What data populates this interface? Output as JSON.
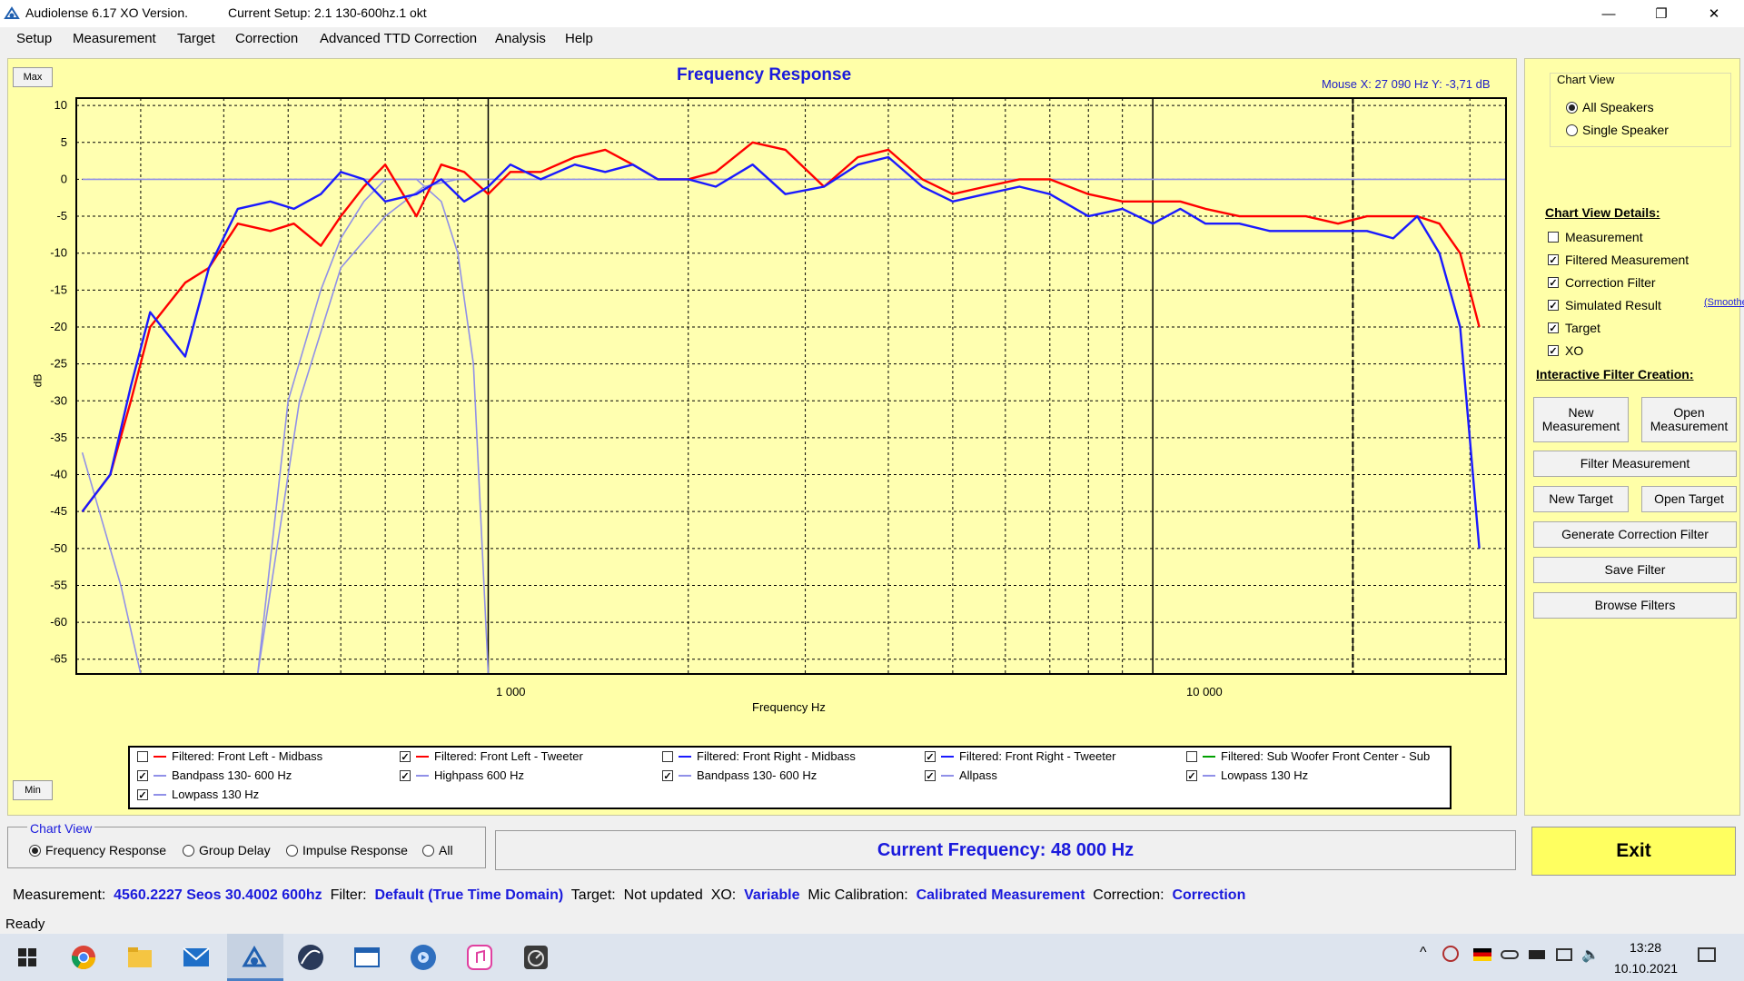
{
  "window": {
    "app_title": "Audiolense 6.17 XO Version.",
    "setup_title": "Current Setup: 2.1 130-600hz.1 okt",
    "minimize_glyph": "—",
    "restore_glyph": "❐",
    "close_glyph": "✕"
  },
  "menu": [
    "Setup",
    "Measurement",
    "Target",
    "Correction",
    "Advanced TTD Correction",
    "Analysis",
    "Help"
  ],
  "chart": {
    "title": "Frequency Response",
    "mouse_readout": "Mouse X: 27 090 Hz   Y: -3,71 dB",
    "max_label": "Max",
    "min_label": "Min",
    "ylabel": "dB",
    "xlabel": "Frequency Hz",
    "x_tick_labels": [
      "1 000",
      "10 000"
    ]
  },
  "chart_data": {
    "type": "line",
    "title": "Frequency Response",
    "xlabel": "Frequency Hz",
    "ylabel": "dB",
    "x_scale": "log",
    "xlim": [
      240,
      34000
    ],
    "ylim": [
      -67,
      11
    ],
    "y_ticks": [
      10,
      5,
      0,
      -5,
      -10,
      -15,
      -20,
      -25,
      -30,
      -35,
      -40,
      -45,
      -50,
      -55,
      -60,
      -65
    ],
    "x_tick_labels": [
      "1 000",
      "10 000"
    ],
    "grid": true,
    "series": [
      {
        "name": "Filtered: Front Left - Tweeter",
        "color": "#ff0000",
        "x": [
          245,
          270,
          290,
          310,
          350,
          380,
          420,
          470,
          510,
          560,
          600,
          650,
          700,
          780,
          850,
          920,
          1000,
          1080,
          1200,
          1350,
          1500,
          1650,
          1800,
          2000,
          2200,
          2500,
          2800,
          3200,
          3600,
          4000,
          4500,
          5000,
          5600,
          6300,
          7000,
          8000,
          9000,
          10000,
          11000,
          12000,
          13500,
          15000,
          17000,
          19000,
          21000,
          23000,
          25000,
          27000,
          29000,
          31000
        ],
        "y": [
          -45,
          -40,
          -30,
          -20,
          -14,
          -12,
          -6,
          -7,
          -6,
          -9,
          -5,
          -1,
          2,
          -5,
          2,
          1,
          -2,
          1,
          1,
          3,
          4,
          2,
          0,
          0,
          1,
          5,
          4,
          -1,
          3,
          4,
          0,
          -2,
          -1,
          0,
          0,
          -2,
          -3,
          -3,
          -3,
          -4,
          -5,
          -5,
          -5,
          -6,
          -5,
          -5,
          -5,
          -6,
          -10,
          -20
        ]
      },
      {
        "name": "Filtered: Front Right - Tweeter",
        "color": "#1a1aff",
        "x": [
          245,
          270,
          290,
          310,
          350,
          380,
          420,
          470,
          510,
          560,
          600,
          650,
          700,
          780,
          850,
          920,
          1000,
          1080,
          1200,
          1350,
          1500,
          1650,
          1800,
          2000,
          2200,
          2500,
          2800,
          3200,
          3600,
          4000,
          4500,
          5000,
          5600,
          6300,
          7000,
          8000,
          9000,
          10000,
          11000,
          12000,
          13500,
          15000,
          17000,
          19000,
          21000,
          23000,
          25000,
          27000,
          29000,
          31000
        ],
        "y": [
          -45,
          -40,
          -28,
          -18,
          -24,
          -12,
          -4,
          -3,
          -4,
          -2,
          1,
          0,
          -3,
          -2,
          0,
          -3,
          -1,
          2,
          0,
          2,
          1,
          2,
          0,
          0,
          -1,
          2,
          -2,
          -1,
          2,
          3,
          -1,
          -3,
          -2,
          -1,
          -2,
          -5,
          -4,
          -6,
          -4,
          -6,
          -6,
          -7,
          -7,
          -7,
          -7,
          -8,
          -5,
          -10,
          -20,
          -50
        ]
      },
      {
        "name": "Bandpass  130- 600 Hz",
        "color": "#9090e8",
        "x": [
          450,
          500,
          560,
          600,
          650,
          700,
          780,
          850,
          900,
          950,
          1000
        ],
        "y": [
          -67,
          -30,
          -15,
          -8,
          -3,
          0,
          0,
          -3,
          -10,
          -25,
          -67
        ]
      },
      {
        "name": "Highpass  600 Hz",
        "color": "#9090e8",
        "x": [
          450,
          520,
          600,
          700,
          800,
          900,
          1000
        ],
        "y": [
          -67,
          -30,
          -12,
          -5,
          -1,
          0,
          0
        ]
      },
      {
        "name": "Allpass",
        "color": "#9090e8",
        "x": [
          245,
          34000
        ],
        "y": [
          0,
          0
        ]
      },
      {
        "name": "Lowpass  130 Hz",
        "color": "#9090e8",
        "x": [
          245,
          260,
          280,
          300
        ],
        "y": [
          -37,
          -45,
          -55,
          -67
        ]
      }
    ]
  },
  "legend": [
    [
      {
        "label": "Filtered: Front Left - Midbass",
        "checked": false,
        "color": "#ff0000"
      },
      {
        "label": "Filtered: Front Left - Tweeter",
        "checked": true,
        "color": "#ff0000"
      },
      {
        "label": "Filtered: Front Right - Midbass",
        "checked": false,
        "color": "#1a1aff"
      },
      {
        "label": "Filtered: Front Right - Tweeter",
        "checked": true,
        "color": "#1a1aff"
      },
      {
        "label": "Filtered: Sub Woofer Front Center - Sub",
        "checked": false,
        "color": "#00a000"
      }
    ],
    [
      {
        "label": "Bandpass  130- 600 Hz",
        "checked": true,
        "color": "#9090e8"
      },
      {
        "label": "Highpass  600 Hz",
        "checked": true,
        "color": "#9090e8"
      },
      {
        "label": "Bandpass  130- 600 Hz",
        "checked": true,
        "color": "#9090e8"
      },
      {
        "label": "Allpass",
        "checked": true,
        "color": "#9090e8"
      },
      {
        "label": "Lowpass  130 Hz",
        "checked": true,
        "color": "#9090e8"
      }
    ],
    [
      {
        "label": "Lowpass  130 Hz",
        "checked": true,
        "color": "#9090e8"
      }
    ]
  ],
  "right_panel": {
    "chart_view_group": "Chart View",
    "all_speakers": "All Speakers",
    "single_speaker": "Single Speaker",
    "details_header": "Chart View Details:",
    "details": [
      {
        "label": "Measurement",
        "checked": false
      },
      {
        "label": "Filtered Measurement",
        "checked": true
      },
      {
        "label": "Correction Filter",
        "checked": true
      },
      {
        "label": "Simulated Result",
        "checked": true
      },
      {
        "label": "Target",
        "checked": true
      },
      {
        "label": "XO",
        "checked": true
      }
    ],
    "smoothed_link": "(Smoothed)",
    "interactive_header": "Interactive Filter Creation:",
    "new_measurement_l1": "New",
    "new_measurement_l2": "Measurement",
    "open_measurement_l1": "Open",
    "open_measurement_l2": "Measurement",
    "filter_measurement": "Filter Measurement",
    "new_target": "New Target",
    "open_target": "Open Target",
    "generate_correction": "Generate Correction Filter",
    "save_filter": "Save Filter",
    "browse_filters": "Browse Filters"
  },
  "bottom": {
    "chart_view_label": "Chart View",
    "options": [
      "Frequency Response",
      "Group Delay",
      "Impulse Response",
      "All"
    ],
    "selected": "Frequency Response",
    "current_frequency": "Current Frequency: 48 000 Hz",
    "exit": "Exit"
  },
  "status": {
    "measurement_label": "Measurement:",
    "measurement_value": "4560.2227 Seos 30.4002 600hz",
    "filter_label": "Filter:",
    "filter_value": "Default (True Time Domain)",
    "target_label": "Target:",
    "target_value": "Not updated",
    "xo_label": "XO:",
    "xo_value": "Variable",
    "mic_label": "Mic Calibration:",
    "mic_value": "Calibrated Measurement",
    "correction_label": "Correction:",
    "correction_value": "Correction",
    "ready": "Ready"
  },
  "taskbar": {
    "time": "13:28",
    "date": "10.10.2021"
  }
}
